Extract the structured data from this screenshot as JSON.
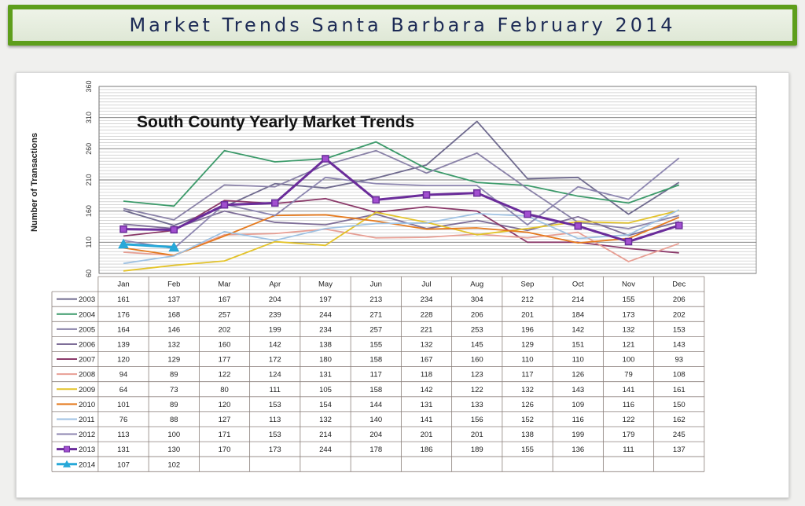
{
  "banner": {
    "title": "Market Trends Santa Barbara February 2014"
  },
  "chart_data": {
    "type": "line",
    "title": "South County Yearly Market Trends",
    "xlabel": "",
    "ylabel": "Number of Transactions",
    "ylim": [
      60,
      360
    ],
    "yticks": [
      60,
      110,
      160,
      210,
      260,
      310,
      360
    ],
    "grid": true,
    "legend": "table-below",
    "categories": [
      "Jan",
      "Feb",
      "Mar",
      "Apr",
      "May",
      "Jun",
      "Jul",
      "Aug",
      "Sep",
      "Oct",
      "Nov",
      "Dec"
    ],
    "series": [
      {
        "name": "2003",
        "color": "#6f6a8e",
        "values": [
          161,
          137,
          167,
          204,
          197,
          213,
          234,
          304,
          212,
          214,
          155,
          206
        ]
      },
      {
        "name": "2004",
        "color": "#3c9a6a",
        "values": [
          176,
          168,
          257,
          239,
          244,
          271,
          228,
          206,
          201,
          184,
          173,
          202
        ]
      },
      {
        "name": "2005",
        "color": "#8a82a8",
        "values": [
          164,
          146,
          202,
          199,
          234,
          257,
          221,
          253,
          196,
          142,
          132,
          153
        ]
      },
      {
        "name": "2006",
        "color": "#7e6e98",
        "values": [
          139,
          132,
          160,
          142,
          138,
          155,
          132,
          145,
          129,
          151,
          121,
          143
        ]
      },
      {
        "name": "2007",
        "color": "#8b3a6a",
        "values": [
          120,
          129,
          177,
          172,
          180,
          158,
          167,
          160,
          110,
          110,
          100,
          93
        ]
      },
      {
        "name": "2008",
        "color": "#e89f94",
        "values": [
          94,
          89,
          122,
          124,
          131,
          117,
          118,
          123,
          117,
          126,
          79,
          108
        ]
      },
      {
        "name": "2009",
        "color": "#e3c32a",
        "values": [
          64,
          73,
          80,
          111,
          105,
          158,
          142,
          122,
          132,
          143,
          141,
          161
        ]
      },
      {
        "name": "2010",
        "color": "#e57a1e",
        "values": [
          101,
          89,
          120,
          153,
          154,
          144,
          131,
          133,
          126,
          109,
          116,
          150
        ]
      },
      {
        "name": "2011",
        "color": "#9fc2e3",
        "values": [
          76,
          88,
          127,
          113,
          132,
          140,
          141,
          156,
          152,
          116,
          122,
          162
        ]
      },
      {
        "name": "2012",
        "color": "#8d86b0",
        "values": [
          113,
          100,
          171,
          153,
          214,
          204,
          201,
          201,
          138,
          199,
          179,
          245
        ]
      },
      {
        "name": "2013",
        "color": "#6a2c9a",
        "values": [
          131,
          130,
          170,
          173,
          244,
          178,
          186,
          189,
          155,
          136,
          111,
          137
        ]
      },
      {
        "name": "2014",
        "color": "#27a8d8",
        "values": [
          107,
          102,
          null,
          null,
          null,
          null,
          null,
          null,
          null,
          null,
          null,
          null
        ]
      }
    ]
  }
}
